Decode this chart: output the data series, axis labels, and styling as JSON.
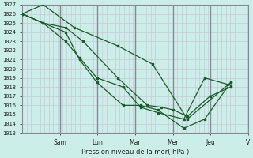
{
  "title": "",
  "xlabel": "Pression niveau de la mer( hPa )",
  "ylabel": "",
  "ylim": [
    1013,
    1027
  ],
  "xlim": [
    0,
    13.0
  ],
  "yticks": [
    1013,
    1014,
    1015,
    1016,
    1017,
    1018,
    1019,
    1020,
    1021,
    1022,
    1023,
    1024,
    1025,
    1026,
    1027
  ],
  "background_color": "#cceee8",
  "grid_color_minor": "#c8c8d8",
  "grid_color_day": "#888899",
  "line_color": "#1a5c28",
  "x_day_labels": [
    "Sam",
    "Lun",
    "Mar",
    "Mer",
    "Jeu",
    "V"
  ],
  "x_day_positions": [
    2.17,
    4.33,
    6.5,
    8.67,
    10.83,
    13.0
  ],
  "x_day_separators": [
    2.17,
    4.33,
    6.5,
    8.67,
    10.83
  ],
  "lines": [
    {
      "x": [
        0.0,
        1.2,
        2.5,
        3.5,
        5.5,
        7.2,
        8.0,
        8.7,
        9.5,
        10.8,
        12.0
      ],
      "y": [
        1026.0,
        1025.0,
        1024.5,
        1023.0,
        1019.0,
        1016.0,
        1015.8,
        1015.5,
        1014.8,
        1017.0,
        1018.0
      ]
    },
    {
      "x": [
        0.0,
        1.2,
        2.5,
        3.3,
        4.3,
        5.8,
        6.8,
        7.8,
        9.3,
        10.5,
        12.0
      ],
      "y": [
        1026.0,
        1025.0,
        1024.0,
        1021.0,
        1018.5,
        1016.0,
        1016.0,
        1015.5,
        1013.5,
        1014.5,
        1018.5
      ]
    },
    {
      "x": [
        0.0,
        1.2,
        2.5,
        3.3,
        4.3,
        5.8,
        6.8,
        7.8,
        9.3,
        10.5,
        12.0
      ],
      "y": [
        1026.0,
        1025.0,
        1023.0,
        1021.2,
        1019.0,
        1018.0,
        1015.8,
        1015.2,
        1014.5,
        1019.0,
        1018.2
      ]
    },
    {
      "x": [
        0.0,
        1.2,
        3.0,
        5.5,
        7.5,
        9.5,
        12.0
      ],
      "y": [
        1026.0,
        1027.0,
        1024.5,
        1022.5,
        1020.5,
        1014.5,
        1018.5
      ]
    }
  ]
}
